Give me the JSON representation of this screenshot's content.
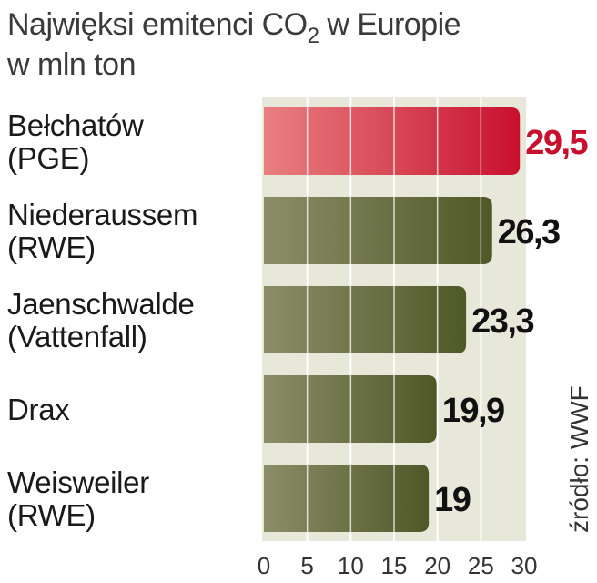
{
  "chart_data": {
    "type": "bar",
    "orientation": "horizontal",
    "title": "Najwięksi emitenci CO",
    "title_subscript": "2",
    "title_rest": " w Europie",
    "subtitle": "w mln ton",
    "categories": [
      [
        "Bełchatów",
        "(PGE)"
      ],
      [
        "Niederaussem",
        "(RWE)"
      ],
      [
        "Jaenschwalde",
        "(Vattenfall)"
      ],
      [
        "Drax"
      ],
      [
        "Weisweiler",
        "(RWE)"
      ]
    ],
    "values": [
      29.5,
      26.3,
      23.3,
      19.9,
      19
    ],
    "value_labels": [
      "29,5",
      "26,3",
      "23,3",
      "19,9",
      "19"
    ],
    "highlight_index": 0,
    "xlim": [
      0,
      30
    ],
    "ticks": [
      0,
      5,
      10,
      15,
      20,
      25,
      30
    ],
    "source": "źródło: WWF",
    "colors": {
      "highlight_dark": "#c8102e",
      "highlight_light": "#e88080",
      "bar_dark": "#4f5828",
      "bar_light": "#8b8e68",
      "background_band": "#e7e8d9",
      "highlight_label": "#c8102e",
      "value_label": "#111111"
    }
  }
}
